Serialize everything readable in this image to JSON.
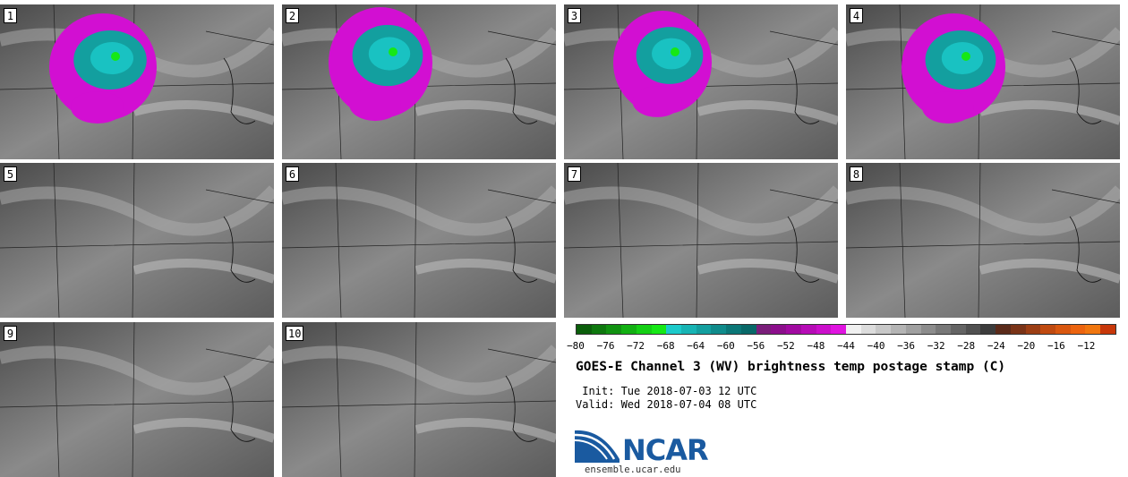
{
  "panels": [
    {
      "label": "1"
    },
    {
      "label": "2"
    },
    {
      "label": "3"
    },
    {
      "label": "4"
    },
    {
      "label": "5"
    },
    {
      "label": "6"
    },
    {
      "label": "7"
    },
    {
      "label": "8"
    },
    {
      "label": "9"
    },
    {
      "label": "10"
    }
  ],
  "colorbar": {
    "colors": [
      "#0b5e0b",
      "#0e780e",
      "#119211",
      "#12b012",
      "#14cf14",
      "#16e816",
      "#1ccaca",
      "#17b4b4",
      "#139f9f",
      "#0f8b8b",
      "#0b7777",
      "#086868",
      "#7a1e7a",
      "#8c0e8c",
      "#a10aa1",
      "#b60cb6",
      "#cb0fcb",
      "#e014e0",
      "#f0f0f0",
      "#dcdcdc",
      "#c8c8c8",
      "#b4b4b4",
      "#a0a0a0",
      "#8c8c8c",
      "#787878",
      "#646464",
      "#505050",
      "#3c3c3c",
      "#5a2a1a",
      "#7a3317",
      "#9c3e14",
      "#c04a10",
      "#d9570f",
      "#ec640f",
      "#f0760f",
      "#c8380a"
    ],
    "ticks": [
      "−80",
      "−76",
      "−72",
      "−68",
      "−64",
      "−60",
      "−56",
      "−52",
      "−48",
      "−44",
      "−40",
      "−36",
      "−32",
      "−28",
      "−24",
      "−20",
      "−16",
      "−12"
    ]
  },
  "title": "GOES-E Channel 3 (WV) brightness temp postage stamp (C)",
  "init_line": " Init: Tue 2018-07-03 12 UTC",
  "valid_line": "Valid: Wed 2018-07-04 08 UTC",
  "logo": {
    "name": "NCAR",
    "site": "ensemble.ucar.edu"
  }
}
